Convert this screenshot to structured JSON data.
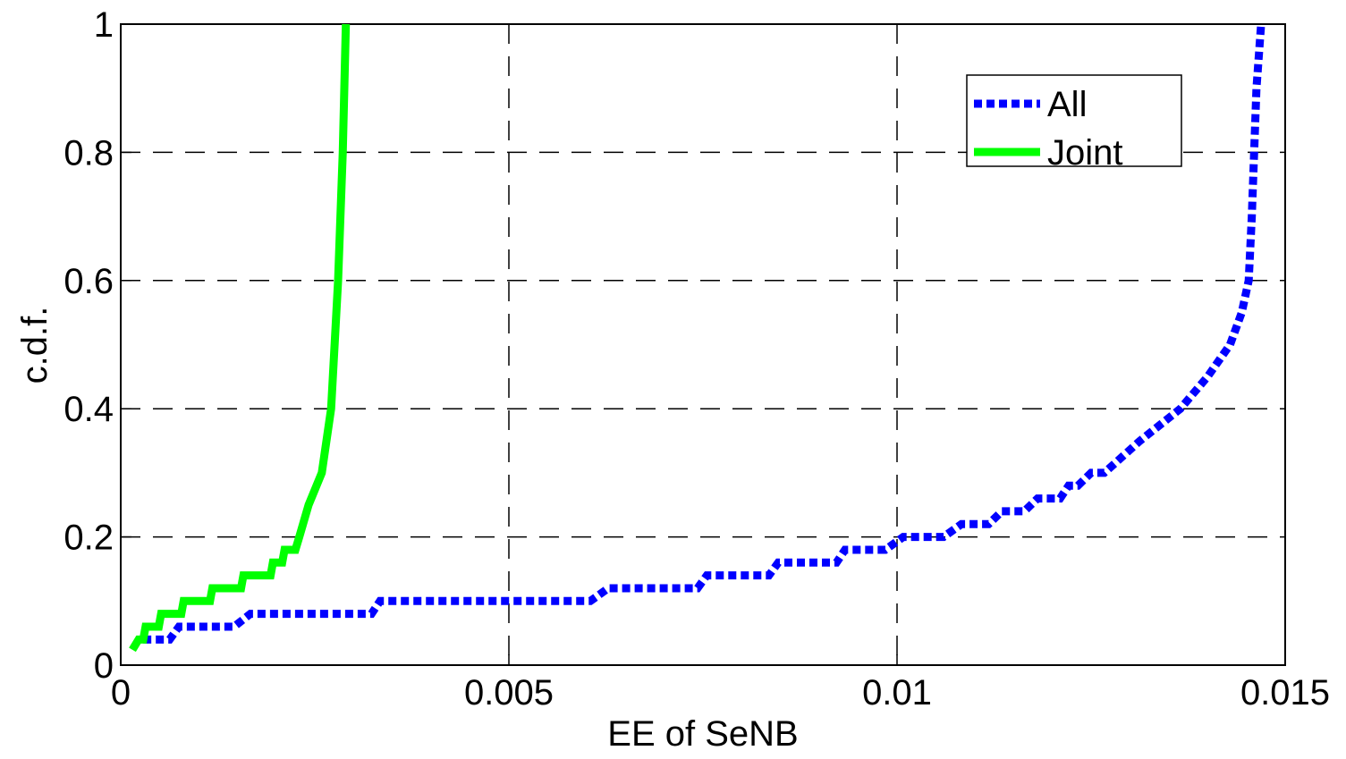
{
  "chart_data": {
    "type": "line",
    "xlabel": "EE of SeNB",
    "ylabel": "c.d.f.",
    "xlim": [
      0,
      0.015
    ],
    "ylim": [
      0,
      1
    ],
    "xticks": [
      0,
      0.005,
      0.01,
      0.015
    ],
    "yticks": [
      0,
      0.2,
      0.4,
      0.6,
      0.8,
      1
    ],
    "grid": true,
    "legend": "upper right",
    "series": [
      {
        "name": "All",
        "color": "#0000ff",
        "linestyle": "dotted",
        "x": [
          0.00029,
          0.00063,
          0.00075,
          0.00146,
          0.00167,
          0.00323,
          0.00334,
          0.00605,
          0.00628,
          0.00743,
          0.00755,
          0.00835,
          0.00847,
          0.00922,
          0.00933,
          0.00985,
          0.01008,
          0.0106,
          0.01083,
          0.01118,
          0.01135,
          0.01164,
          0.01181,
          0.0121,
          0.01221,
          0.01233,
          0.0125,
          0.01267,
          0.01313,
          0.01365,
          0.014,
          0.01429,
          0.01444,
          0.01453,
          0.01457,
          0.0146,
          0.01463,
          0.01469
        ],
        "values": [
          0.04,
          0.04,
          0.06,
          0.06,
          0.08,
          0.08,
          0.1,
          0.1,
          0.12,
          0.12,
          0.14,
          0.14,
          0.16,
          0.16,
          0.18,
          0.18,
          0.2,
          0.2,
          0.22,
          0.22,
          0.24,
          0.24,
          0.26,
          0.26,
          0.28,
          0.28,
          0.3,
          0.3,
          0.35,
          0.4,
          0.45,
          0.5,
          0.55,
          0.6,
          0.7,
          0.8,
          0.9,
          1
        ]
      },
      {
        "name": "Joint",
        "color": "#00ff00",
        "linestyle": "solid",
        "x": [
          0.00015,
          0.00023,
          0.00029,
          0.00032,
          0.00049,
          0.00052,
          0.00078,
          0.00081,
          0.00115,
          0.00118,
          0.00155,
          0.00158,
          0.00193,
          0.00196,
          0.00208,
          0.00211,
          0.00225,
          0.0023,
          0.00242,
          0.00259,
          0.00271,
          0.0028,
          0.00286,
          0.0029
        ],
        "values": [
          0.024,
          0.04,
          0.04,
          0.06,
          0.06,
          0.08,
          0.08,
          0.1,
          0.1,
          0.12,
          0.12,
          0.14,
          0.14,
          0.16,
          0.16,
          0.18,
          0.18,
          0.2,
          0.25,
          0.3,
          0.4,
          0.6,
          0.8,
          1
        ]
      }
    ]
  }
}
